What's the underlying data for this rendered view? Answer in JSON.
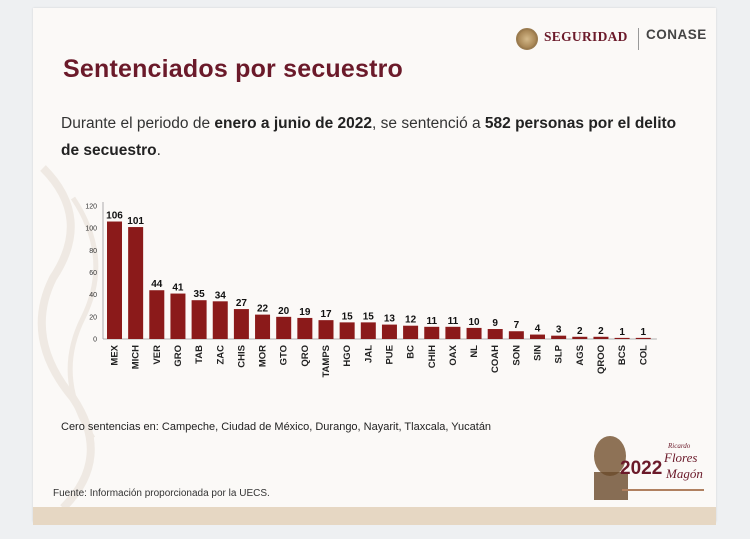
{
  "header": {
    "logo_seguridad": "SEGURIDAD",
    "logo_conase": "CONASE"
  },
  "title": "Sentenciados por secuestro",
  "summary": {
    "part1": "Durante el periodo de ",
    "bold1": "enero a junio de 2022",
    "part2": ", se sentenció a ",
    "bold2": "582 personas por el delito de secuestro",
    "part3": "."
  },
  "chart_data": {
    "type": "bar",
    "categories": [
      "MEX",
      "MICH",
      "VER",
      "GRO",
      "TAB",
      "ZAC",
      "CHIS",
      "MOR",
      "GTO",
      "QRO",
      "TAMPS",
      "HGO",
      "JAL",
      "PUE",
      "BC",
      "CHIH",
      "OAX",
      "NL",
      "COAH",
      "SON",
      "SIN",
      "SLP",
      "AGS",
      "QROO",
      "BCS",
      "COL"
    ],
    "values": [
      106,
      101,
      44,
      41,
      35,
      34,
      27,
      22,
      20,
      19,
      17,
      15,
      15,
      13,
      12,
      11,
      11,
      10,
      9,
      7,
      4,
      3,
      2,
      2,
      1,
      1
    ],
    "ylim": [
      0,
      120
    ],
    "yticks": [
      0,
      20,
      40,
      60,
      80,
      100,
      120
    ],
    "bar_color": "#8b1a1a",
    "grid": false
  },
  "note": "Cero sentencias en: Campeche, Ciudad de México, Durango, Nayarit, Tlaxcala, Yucatán",
  "source": "Fuente: Información proporcionada por la UECS.",
  "emblem": {
    "year": "2022",
    "text1": "Ricardo",
    "text2": "Flores",
    "text3": "Magón"
  }
}
